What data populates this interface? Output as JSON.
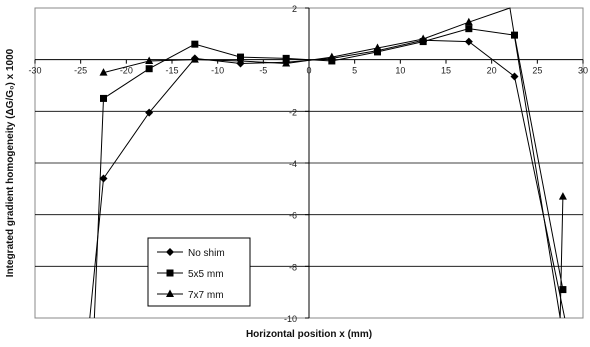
{
  "chart_data": {
    "type": "line",
    "title": "",
    "xlabel": "Horizontal position x (mm)",
    "ylabel": "Integrated gradient homogeneity (ΔG/G₀) x 1000",
    "xlim": [
      -30,
      30
    ],
    "ylim": [
      -10,
      2
    ],
    "xticks": [
      -30,
      -25,
      -20,
      -15,
      -10,
      -5,
      0,
      5,
      10,
      15,
      20,
      25,
      30
    ],
    "yticks": [
      2,
      -2,
      -4,
      -6,
      -8,
      -10
    ],
    "xtick_labels": [
      "-30",
      "-25",
      "-20",
      "-15",
      "-10",
      "-5",
      "0",
      "5",
      "10",
      "15",
      "20",
      "25",
      "30"
    ],
    "ytick_labels": [
      "2",
      "-2",
      "-4",
      "-6",
      "-8",
      "-10"
    ],
    "grid": "horizontal",
    "legend_position": "bottom-left",
    "colors": {
      "line": "#000000",
      "grid": "#000000",
      "plot_border": "#888888"
    },
    "series": [
      {
        "name": "No shim",
        "marker": "diamond",
        "x": [
          -24.0,
          -22.5,
          -17.5,
          -12.5,
          -7.5,
          -2.5,
          2.5,
          7.5,
          12.5,
          17.5,
          22.5,
          28.0
        ],
        "y": [
          -10.0,
          -4.6,
          -2.05,
          0.05,
          -0.15,
          -0.1,
          0.05,
          0.35,
          0.75,
          0.7,
          -0.65,
          -10.0
        ]
      },
      {
        "name": "5x5 mm",
        "marker": "square",
        "x": [
          -23.5,
          -22.5,
          -17.5,
          -12.5,
          -7.5,
          -2.5,
          2.5,
          7.5,
          12.5,
          17.5,
          22.5,
          27.8
        ],
        "y": [
          -10.0,
          -1.5,
          -0.35,
          0.6,
          0.1,
          0.05,
          -0.05,
          0.3,
          0.7,
          1.2,
          0.95,
          -8.9
        ]
      },
      {
        "name": "7x7 mm",
        "marker": "triangle",
        "x": [
          -22.5,
          -17.5,
          -12.5,
          -7.5,
          -2.5,
          2.5,
          7.5,
          12.5,
          17.5,
          22.0,
          27.5,
          27.8
        ],
        "y": [
          -0.5,
          -0.05,
          0.0,
          -0.05,
          -0.15,
          0.1,
          0.45,
          0.8,
          1.45,
          2.0,
          -10.0,
          -5.3
        ]
      }
    ]
  }
}
